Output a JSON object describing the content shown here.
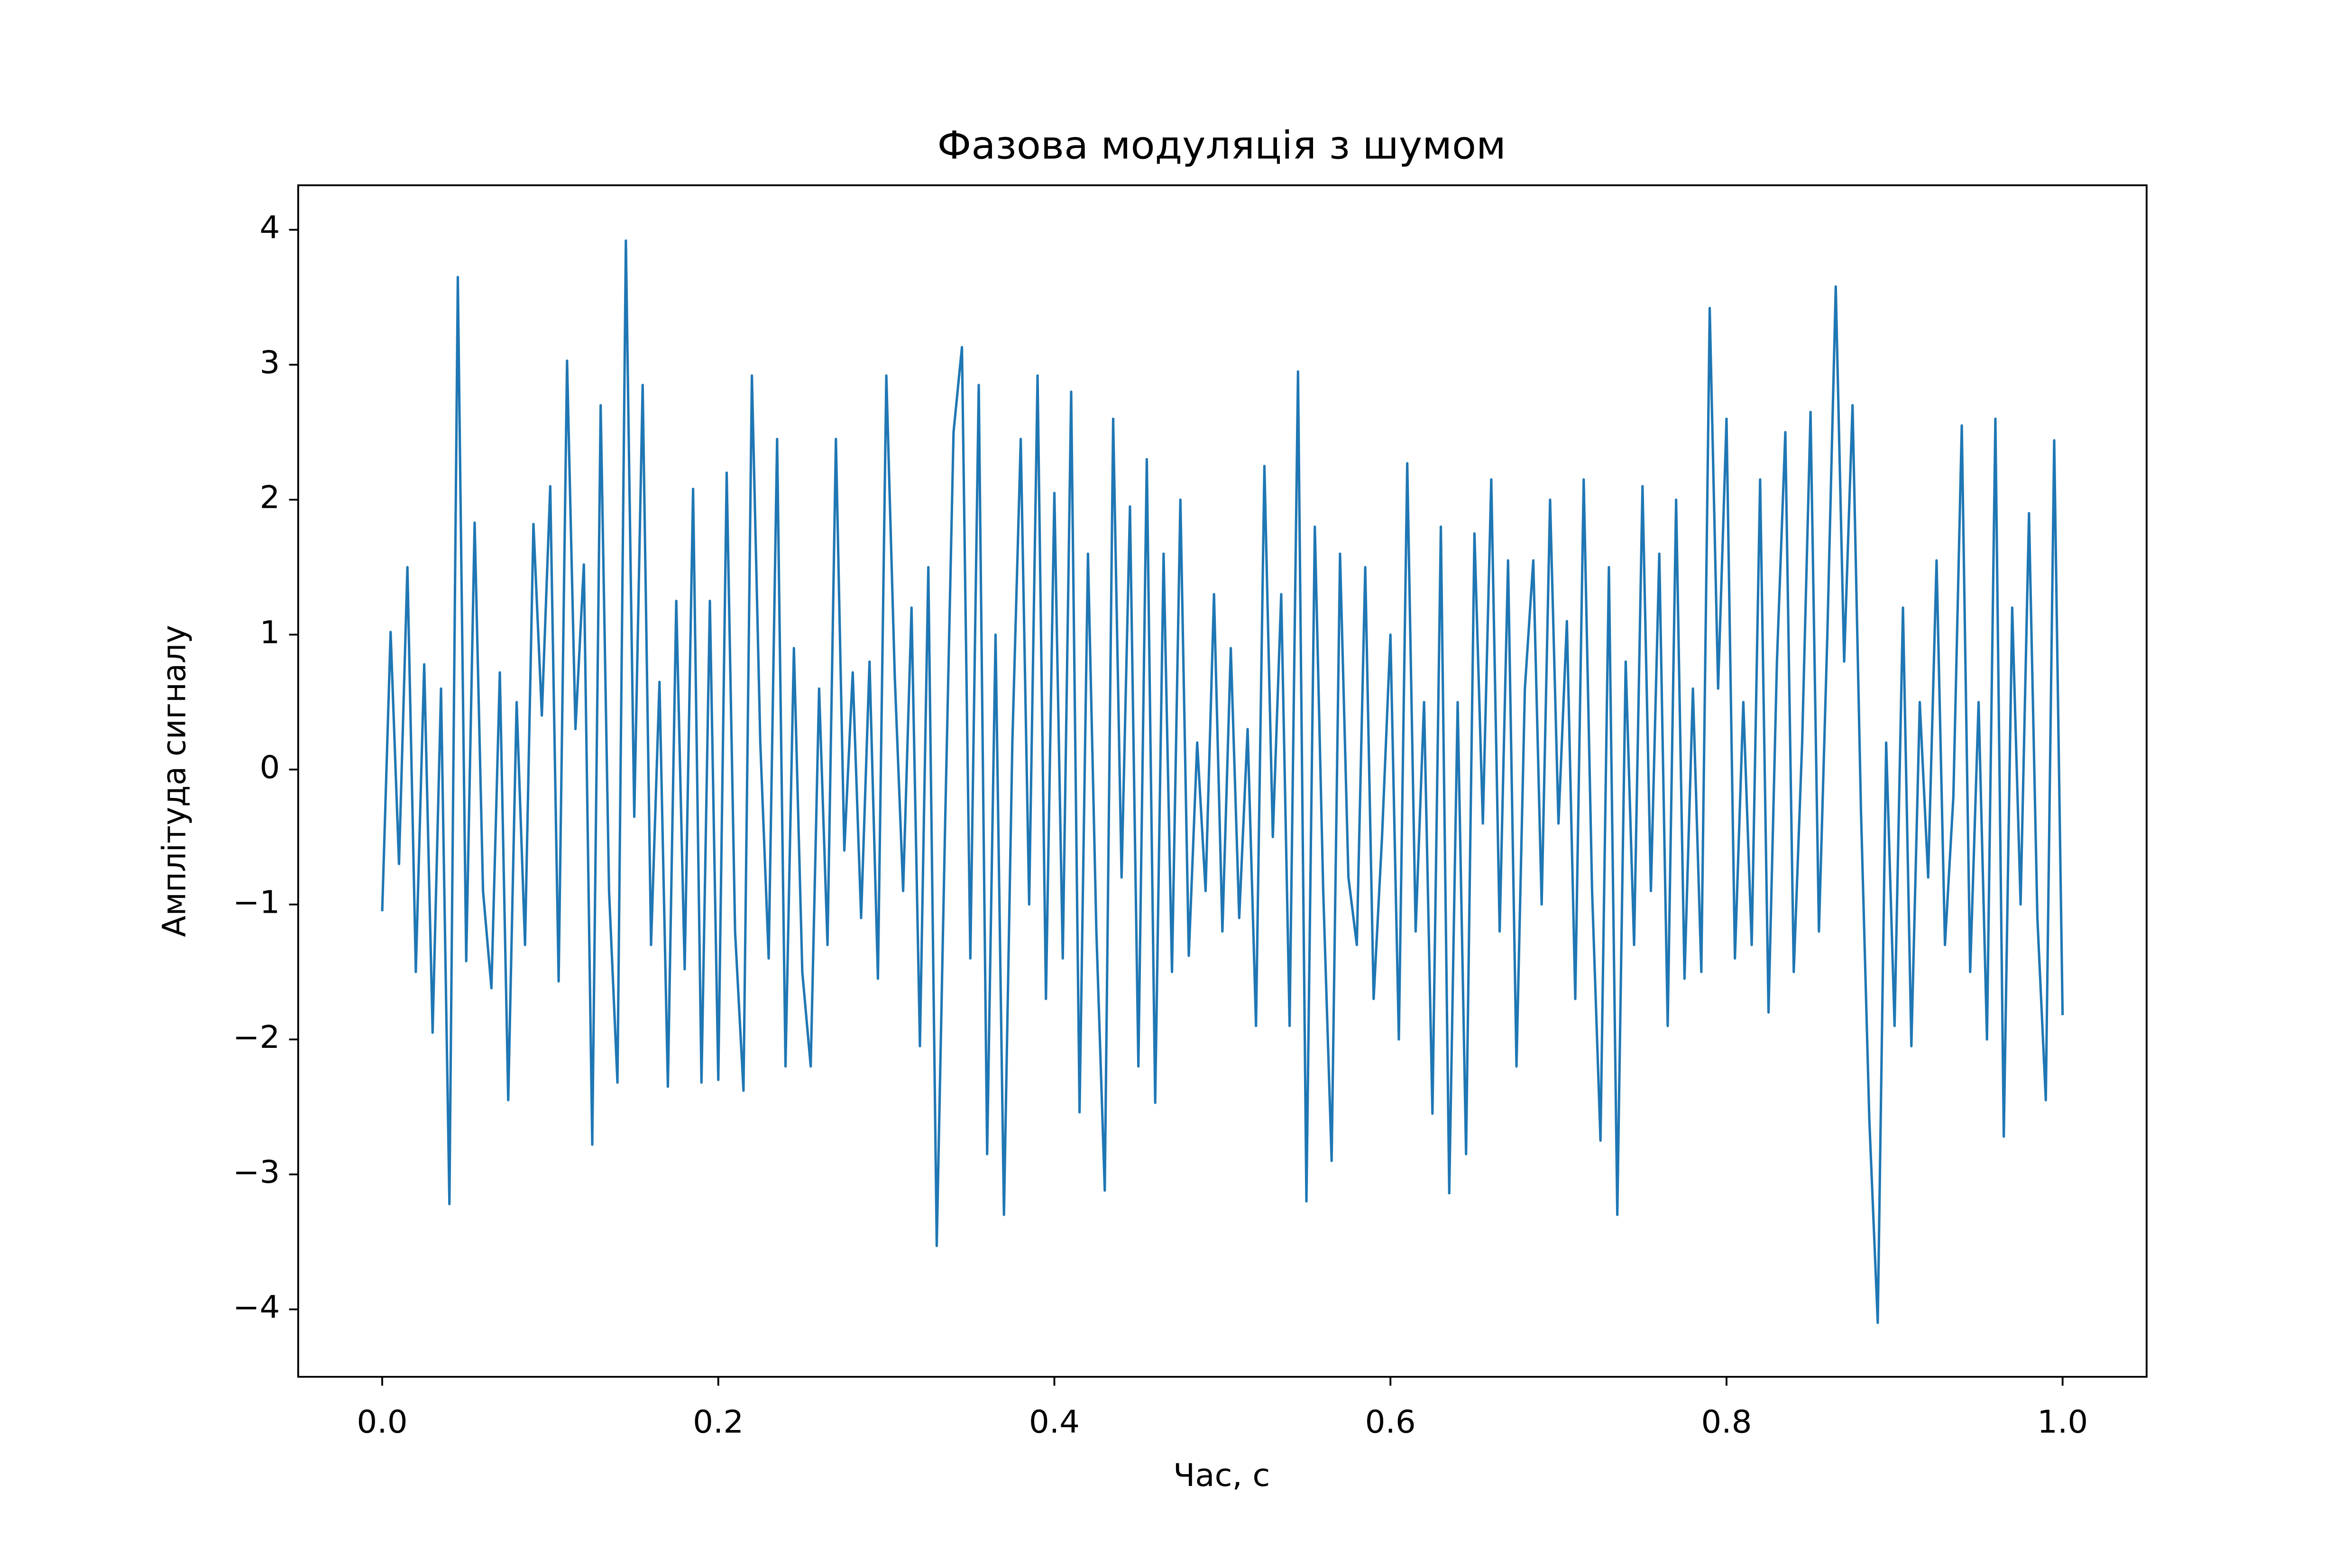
{
  "chart_data": {
    "type": "line",
    "title": "Фазова модуляція з шумом",
    "xlabel": "Час, с",
    "ylabel": "Амплітуда сигналу",
    "color": "#1f77b4",
    "xlim": [
      -0.05,
      1.05
    ],
    "ylim": [
      -4.5,
      4.33
    ],
    "xticks": [
      {
        "value": 0,
        "label": "0.0"
      },
      0.2,
      0.4,
      0.6,
      0.8,
      {
        "value": 1,
        "label": "1.0"
      }
    ],
    "yticks": [
      {
        "value": -4,
        "label": "−4"
      },
      {
        "value": -3,
        "label": "−3"
      },
      {
        "value": -2,
        "label": "−2"
      },
      {
        "value": -1,
        "label": "−1"
      },
      0,
      1,
      2,
      3,
      4
    ],
    "x": [
      0,
      0.005,
      0.01,
      0.015,
      0.02,
      0.025,
      0.03,
      0.035,
      0.04,
      0.045,
      0.05,
      0.055,
      0.06,
      0.065,
      0.07,
      0.075,
      0.08,
      0.085,
      0.09,
      0.095,
      0.1,
      0.105,
      0.11,
      0.115,
      0.12,
      0.125,
      0.13,
      0.135,
      0.14,
      0.145,
      0.15,
      0.155,
      0.16,
      0.165,
      0.17,
      0.175,
      0.18,
      0.185,
      0.19,
      0.195,
      0.2,
      0.205,
      0.21,
      0.215,
      0.22,
      0.225,
      0.23,
      0.235,
      0.24,
      0.245,
      0.25,
      0.255,
      0.26,
      0.265,
      0.27,
      0.275,
      0.28,
      0.285,
      0.29,
      0.295,
      0.3,
      0.305,
      0.31,
      0.315,
      0.32,
      0.325,
      0.33,
      0.335,
      0.34,
      0.345,
      0.35,
      0.355,
      0.36,
      0.365,
      0.37,
      0.375,
      0.38,
      0.385,
      0.39,
      0.395,
      0.4,
      0.405,
      0.41,
      0.415,
      0.42,
      0.425,
      0.43,
      0.435,
      0.44,
      0.445,
      0.45,
      0.455,
      0.46,
      0.465,
      0.47,
      0.475,
      0.48,
      0.485,
      0.49,
      0.495,
      0.5,
      0.505,
      0.51,
      0.515,
      0.52,
      0.525,
      0.53,
      0.535,
      0.54,
      0.545,
      0.55,
      0.555,
      0.56,
      0.565,
      0.57,
      0.575,
      0.58,
      0.585,
      0.59,
      0.595,
      0.6,
      0.605,
      0.61,
      0.615,
      0.62,
      0.625,
      0.63,
      0.635,
      0.64,
      0.645,
      0.65,
      0.655,
      0.66,
      0.665,
      0.67,
      0.675,
      0.68,
      0.685,
      0.69,
      0.695,
      0.7,
      0.705,
      0.71,
      0.715,
      0.72,
      0.725,
      0.73,
      0.735,
      0.74,
      0.745,
      0.75,
      0.755,
      0.76,
      0.765,
      0.77,
      0.775,
      0.78,
      0.785,
      0.79,
      0.795,
      0.8,
      0.805,
      0.81,
      0.815,
      0.82,
      0.825,
      0.83,
      0.835,
      0.84,
      0.845,
      0.85,
      0.855,
      0.86,
      0.865,
      0.87,
      0.875,
      0.88,
      0.885,
      0.89,
      0.895,
      0.9,
      0.905,
      0.91,
      0.915,
      0.92,
      0.925,
      0.93,
      0.935,
      0.94,
      0.945,
      0.95,
      0.955,
      0.96,
      0.965,
      0.97,
      0.975,
      0.98,
      0.985,
      0.99,
      0.995,
      1
    ],
    "values": [
      -1.05,
      1.02,
      -0.7,
      1.5,
      -1.5,
      0.78,
      -1.95,
      0.6,
      -3.22,
      3.65,
      -1.42,
      1.83,
      -0.9,
      -1.62,
      0.72,
      -2.45,
      0.5,
      -1.3,
      1.82,
      0.4,
      2.1,
      -1.57,
      3.03,
      0.3,
      1.52,
      -2.78,
      2.7,
      -0.9,
      -2.32,
      3.92,
      -0.35,
      2.85,
      -1.3,
      0.65,
      -2.35,
      1.25,
      -1.48,
      2.08,
      -2.32,
      1.25,
      -2.3,
      2.2,
      -1.2,
      -2.38,
      2.92,
      0.2,
      -1.4,
      2.45,
      -2.2,
      0.9,
      -1.5,
      -2.2,
      0.6,
      -1.3,
      2.45,
      -0.6,
      0.72,
      -1.1,
      0.8,
      -1.55,
      2.92,
      0.7,
      -0.9,
      1.2,
      -2.05,
      1.5,
      -3.53,
      -0.4,
      2.5,
      3.13,
      -1.4,
      2.85,
      -2.85,
      1.0,
      -3.3,
      0.2,
      2.45,
      -1.0,
      2.92,
      -1.7,
      2.05,
      -1.4,
      2.8,
      -2.54,
      1.6,
      -1.2,
      -3.12,
      2.6,
      -0.8,
      1.95,
      -2.2,
      2.3,
      -2.47,
      1.6,
      -1.5,
      2.0,
      -1.38,
      0.2,
      -0.9,
      1.3,
      -1.2,
      0.9,
      -1.1,
      0.3,
      -1.9,
      2.25,
      -0.5,
      1.3,
      -1.9,
      2.95,
      -3.2,
      1.8,
      -0.9,
      -2.9,
      1.6,
      -0.8,
      -1.3,
      1.5,
      -1.7,
      -0.5,
      1.0,
      -2.0,
      2.27,
      -1.2,
      0.5,
      -2.55,
      1.8,
      -3.14,
      0.5,
      -2.85,
      1.75,
      -0.4,
      2.15,
      -1.2,
      1.55,
      -2.2,
      0.6,
      1.55,
      -1.0,
      2.0,
      -0.4,
      1.1,
      -1.7,
      2.15,
      -0.9,
      -2.75,
      1.5,
      -3.3,
      0.8,
      -1.3,
      2.1,
      -0.9,
      1.6,
      -1.9,
      2.0,
      -1.55,
      0.6,
      -1.5,
      3.42,
      0.6,
      2.6,
      -1.4,
      0.5,
      -1.3,
      2.15,
      -1.8,
      0.8,
      2.5,
      -1.5,
      0.2,
      2.65,
      -1.2,
      1.0,
      3.58,
      0.8,
      2.7,
      -0.3,
      -2.6,
      -4.1,
      0.2,
      -1.9,
      1.2,
      -2.05,
      0.5,
      -0.8,
      1.55,
      -1.3,
      -0.2,
      2.55,
      -1.5,
      0.5,
      -2.0,
      2.6,
      -2.72,
      1.2,
      -1.0,
      1.9,
      -1.1,
      -2.45,
      2.44,
      -1.82
    ]
  }
}
